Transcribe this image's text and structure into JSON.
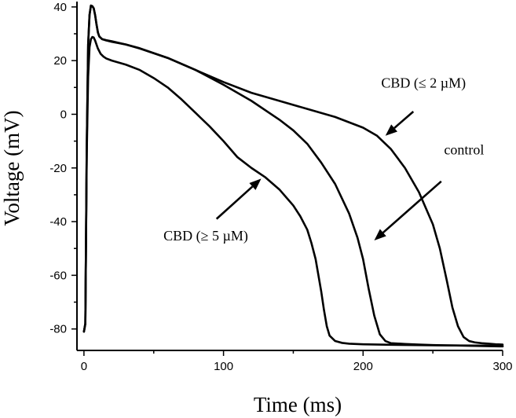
{
  "chart_data": {
    "type": "line",
    "title": "",
    "xlabel": "Time (ms)",
    "ylabel": "Voltage (mV)",
    "xlim": [
      -5,
      300
    ],
    "ylim": [
      -88,
      42
    ],
    "xticks": [
      0,
      100,
      200,
      300
    ],
    "yticks": [
      40,
      20,
      0,
      -20,
      -40,
      -60,
      -80
    ],
    "x_minor_step": 50,
    "y_minor_step": 10,
    "series": [
      {
        "name": "CBD (≤ 2 µM)",
        "x": [
          0,
          1,
          2,
          3,
          4,
          5,
          6,
          7,
          8,
          9,
          10,
          11,
          13,
          16,
          20,
          30,
          40,
          60,
          80,
          100,
          120,
          140,
          160,
          180,
          200,
          210,
          220,
          230,
          240,
          250,
          255,
          260,
          264,
          268,
          272,
          276,
          280,
          285,
          290,
          295,
          300
        ],
        "y": [
          -81,
          -78,
          -12,
          26,
          37,
          40.5,
          40.3,
          39.5,
          37,
          33.5,
          30.5,
          29,
          28,
          27.6,
          27.2,
          26,
          24.6,
          21,
          16.5,
          12,
          8,
          5,
          2,
          -1,
          -5,
          -8,
          -13,
          -20,
          -29,
          -41,
          -50,
          -62,
          -72,
          -79,
          -83,
          -84.5,
          -85,
          -85.3,
          -85.5,
          -85.7,
          -85.8
        ]
      },
      {
        "name": "control",
        "x": [
          0,
          1,
          2,
          3,
          4,
          5,
          6,
          7,
          8,
          9,
          10,
          11,
          13,
          16,
          20,
          30,
          40,
          60,
          80,
          100,
          120,
          140,
          150,
          160,
          170,
          180,
          190,
          196,
          200,
          204,
          208,
          212,
          216,
          220,
          230,
          240,
          250,
          260,
          270,
          280,
          290,
          300
        ],
        "y": [
          -81,
          -78,
          -12,
          26,
          37,
          40.5,
          40.3,
          39.5,
          37,
          33.5,
          30.5,
          29,
          28,
          27.5,
          27,
          26,
          24.5,
          21,
          16.5,
          11,
          5,
          -2,
          -6,
          -11,
          -18,
          -26,
          -37,
          -46,
          -54,
          -65,
          -75,
          -82,
          -84.5,
          -85.3,
          -85.6,
          -85.8,
          -86,
          -86.1,
          -86.2,
          -86.3,
          -86.4,
          -86.5
        ]
      },
      {
        "name": "CBD (≥ 5 µM)",
        "x": [
          0,
          1,
          2,
          3,
          4,
          5,
          6,
          7,
          8,
          9,
          10,
          12,
          14,
          16,
          20,
          30,
          40,
          50,
          60,
          70,
          80,
          90,
          100,
          110,
          120,
          130,
          140,
          150,
          155,
          160,
          163,
          166,
          168,
          170,
          172,
          174,
          176,
          180,
          185,
          190,
          200,
          220,
          250,
          280,
          300
        ],
        "y": [
          -81,
          -78,
          -15,
          14,
          25,
          28,
          28.8,
          28.6,
          27.5,
          26,
          24.5,
          22.5,
          21.5,
          20.8,
          20,
          18.5,
          16.5,
          13.5,
          10,
          5.5,
          0.5,
          -4.5,
          -10,
          -16,
          -20,
          -23.5,
          -28,
          -34,
          -38,
          -43,
          -48,
          -54,
          -60,
          -66,
          -73,
          -79,
          -82.5,
          -84.5,
          -85.2,
          -85.5,
          -85.7,
          -85.9,
          -86.1,
          -86.2,
          -86.3
        ]
      }
    ],
    "annotations": [
      {
        "text": "CBD (≤ 2 µM)",
        "target_series": "CBD (≤ 2 µM)",
        "text_at": [
          213,
          10
        ],
        "arrow_from": [
          236,
          1
        ],
        "arrow_to": [
          216,
          -8
        ]
      },
      {
        "text": "control",
        "target_series": "control",
        "text_at": [
          258,
          -15
        ],
        "arrow_from": [
          256,
          -25
        ],
        "arrow_to": [
          208,
          -47
        ]
      },
      {
        "text": "CBD (≥ 5 µM)",
        "target_series": "CBD (≥ 5 µM)",
        "text_at": [
          57,
          -47
        ],
        "arrow_from": [
          95,
          -39
        ],
        "arrow_to": [
          127,
          -24
        ]
      }
    ]
  }
}
